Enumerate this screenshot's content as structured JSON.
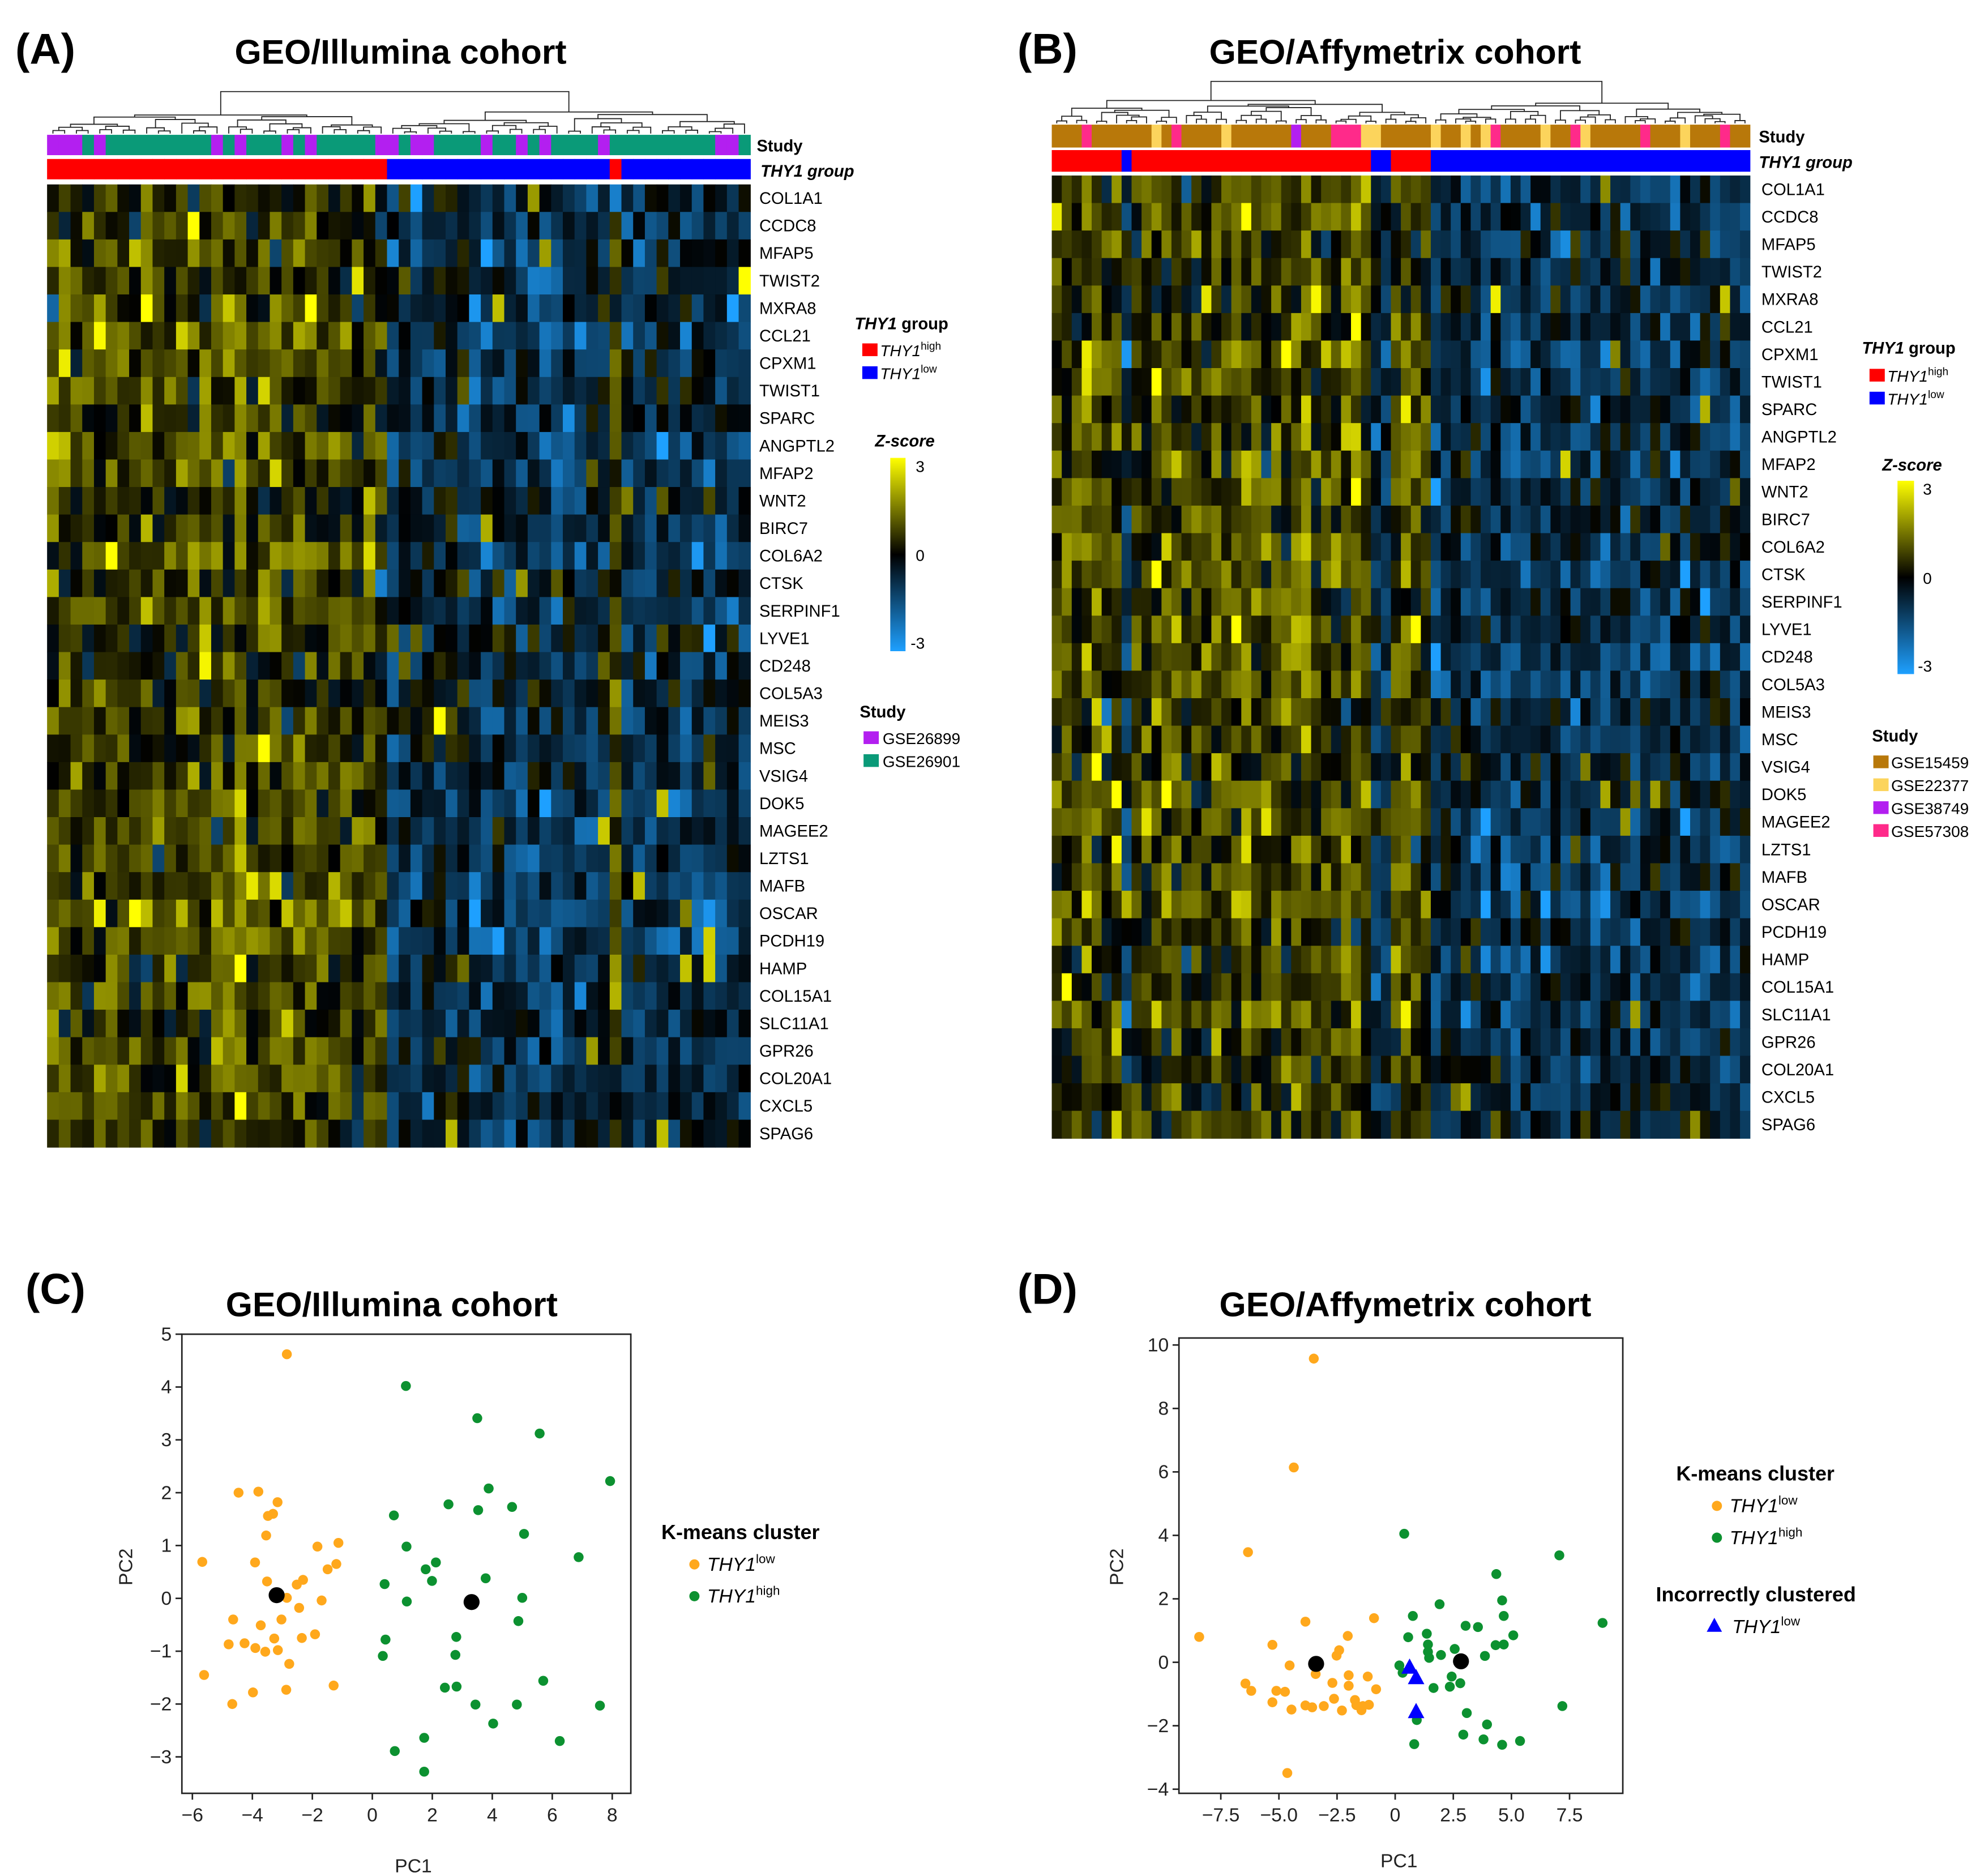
{
  "panels": {
    "A": {
      "label": "(A)",
      "title": "GEO/Illumina cohort"
    },
    "B": {
      "label": "(B)",
      "title": "GEO/Affymetrix cohort"
    },
    "C": {
      "label": "(C)",
      "title": "GEO/Illumina cohort"
    },
    "D": {
      "label": "(D)",
      "title": "GEO/Affymetrix cohort"
    }
  },
  "heatmap_legend": {
    "study_row_label": "Study",
    "thy1_row_label": "THY1 group",
    "thy1_title_italic": "THY1",
    "thy1_title_rest": " group",
    "thy1_items": [
      {
        "name": "THY1",
        "sup": "high",
        "color": "#ff0000"
      },
      {
        "name": "THY1",
        "sup": "low",
        "color": "#0000ff"
      }
    ],
    "zscore_title": "Z-score",
    "zscore_ticks": [
      "3",
      "0",
      "-3"
    ],
    "colors": {
      "high": "#ffff00",
      "zero": "#000000",
      "low": "#1ea0ff"
    },
    "study_title": "Study"
  },
  "chart_data": [
    {
      "type": "heatmap",
      "panel": "A",
      "title": "GEO/Illumina cohort",
      "zlim": [
        -3,
        3
      ],
      "genes": [
        "COL1A1",
        "CCDC8",
        "MFAP5",
        "TWIST2",
        "MXRA8",
        "CCL21",
        "CPXM1",
        "TWIST1",
        "SPARC",
        "ANGPTL2",
        "MFAP2",
        "WNT2",
        "BIRC7",
        "COL6A2",
        "CTSK",
        "SERPINF1",
        "LYVE1",
        "CD248",
        "COL5A3",
        "MEIS3",
        "MSC",
        "VSIG4",
        "DOK5",
        "MAGEE2",
        "LZTS1",
        "MAFB",
        "OSCAR",
        "PCDH19",
        "HAMP",
        "COL15A1",
        "SLC11A1",
        "GPR26",
        "COL20A1",
        "CXCL5",
        "SPAG6"
      ],
      "studies": [
        {
          "name": "GSE26899",
          "color": "#b31ff0"
        },
        {
          "name": "GSE26901",
          "color": "#0a9a78"
        }
      ],
      "study": [
        0,
        0,
        0,
        1,
        0,
        1,
        1,
        1,
        1,
        1,
        1,
        1,
        1,
        1,
        0,
        1,
        0,
        1,
        1,
        1,
        0,
        1,
        0,
        1,
        1,
        1,
        1,
        1,
        0,
        0,
        1,
        0,
        0,
        1,
        1,
        1,
        1,
        0,
        1,
        1,
        0,
        1,
        0,
        1,
        1,
        1,
        1,
        0,
        1,
        1,
        1,
        1,
        1,
        1,
        1,
        1,
        1,
        0,
        0,
        1
      ],
      "thy1_group": [
        0,
        0,
        0,
        0,
        0,
        0,
        0,
        0,
        0,
        0,
        0,
        0,
        0,
        0,
        0,
        0,
        0,
        0,
        0,
        0,
        0,
        0,
        0,
        0,
        0,
        0,
        0,
        0,
        0,
        1,
        1,
        1,
        1,
        1,
        1,
        1,
        1,
        1,
        1,
        1,
        1,
        1,
        1,
        1,
        1,
        1,
        1,
        1,
        0,
        1,
        1,
        1,
        1,
        1,
        1,
        1,
        1,
        1,
        1,
        1
      ],
      "top_cluster_sizes": [
        29,
        31
      ]
    },
    {
      "type": "heatmap",
      "panel": "B",
      "title": "GEO/Affymetrix cohort",
      "zlim": [
        -3,
        3
      ],
      "genes": [
        "COL1A1",
        "CCDC8",
        "MFAP5",
        "TWIST2",
        "MXRA8",
        "CCL21",
        "CPXM1",
        "TWIST1",
        "SPARC",
        "ANGPTL2",
        "MFAP2",
        "WNT2",
        "BIRC7",
        "COL6A2",
        "CTSK",
        "SERPINF1",
        "LYVE1",
        "CD248",
        "COL5A3",
        "MEIS3",
        "MSC",
        "VSIG4",
        "DOK5",
        "MAGEE2",
        "LZTS1",
        "MAFB",
        "OSCAR",
        "PCDH19",
        "HAMP",
        "COL15A1",
        "SLC11A1",
        "GPR26",
        "COL20A1",
        "CXCL5",
        "SPAG6"
      ],
      "studies": [
        {
          "name": "GSE15459",
          "color": "#b8780a"
        },
        {
          "name": "GSE22377",
          "color": "#fcd45c"
        },
        {
          "name": "GSE38749",
          "color": "#b31ff0"
        },
        {
          "name": "GSE57308",
          "color": "#ff2a8a"
        }
      ],
      "study": [
        0,
        0,
        0,
        3,
        0,
        0,
        0,
        0,
        0,
        0,
        1,
        0,
        3,
        0,
        0,
        0,
        0,
        1,
        0,
        0,
        0,
        0,
        0,
        0,
        2,
        0,
        0,
        0,
        3,
        3,
        3,
        1,
        1,
        0,
        0,
        0,
        0,
        0,
        1,
        0,
        0,
        1,
        0,
        1,
        3,
        0,
        0,
        0,
        0,
        1,
        0,
        0,
        3,
        1,
        0,
        0,
        0,
        0,
        0,
        3,
        0,
        0,
        0,
        1,
        0,
        0,
        0,
        3,
        0,
        0
      ],
      "thy1_group": [
        0,
        0,
        0,
        0,
        0,
        0,
        0,
        1,
        0,
        0,
        0,
        0,
        0,
        0,
        0,
        0,
        0,
        0,
        0,
        0,
        0,
        0,
        0,
        0,
        0,
        0,
        0,
        0,
        0,
        0,
        0,
        0,
        1,
        1,
        0,
        0,
        0,
        0,
        1,
        1,
        1,
        1,
        1,
        1,
        1,
        1,
        1,
        1,
        1,
        1,
        1,
        1,
        1,
        1,
        1,
        1,
        1,
        1,
        1,
        1,
        1,
        1,
        1,
        1,
        1,
        1,
        1,
        1,
        1,
        1
      ],
      "top_cluster_sizes": [
        38,
        32
      ]
    },
    {
      "type": "scatter",
      "panel": "C",
      "title": "GEO/Illumina cohort",
      "xlabel": "PC1",
      "ylabel": "PC2",
      "xlim": [
        -6.35,
        8.62
      ],
      "ylim": [
        -3.69,
        5.0
      ],
      "xticks": [
        -6,
        -4,
        -2,
        0,
        2,
        4,
        6,
        8
      ],
      "xtick_labels": [
        "−6",
        "−4",
        "−2",
        "0",
        "2",
        "4",
        "6",
        "8"
      ],
      "yticks": [
        -3,
        -2,
        -1,
        0,
        1,
        2,
        3,
        4,
        5
      ],
      "ytick_labels": [
        "−3",
        "−2",
        "−1",
        "0",
        "1",
        "2",
        "3",
        "4",
        "5"
      ],
      "legend_title": "K-means cluster",
      "series": [
        {
          "name": "THY1",
          "sup": "low",
          "color": "#ffa81c",
          "marker": "circle",
          "points": [
            [
              -2.85,
              4.62
            ],
            [
              -4.46,
              2.0
            ],
            [
              -3.8,
              2.02
            ],
            [
              -3.16,
              1.82
            ],
            [
              -3.48,
              1.56
            ],
            [
              -3.31,
              1.6
            ],
            [
              -3.54,
              1.19
            ],
            [
              -1.83,
              0.98
            ],
            [
              -1.13,
              1.05
            ],
            [
              -5.67,
              0.69
            ],
            [
              -3.91,
              0.68
            ],
            [
              -1.2,
              0.65
            ],
            [
              -1.49,
              0.55
            ],
            [
              -3.51,
              0.32
            ],
            [
              -2.52,
              0.26
            ],
            [
              -2.31,
              0.35
            ],
            [
              -2.85,
              0.01
            ],
            [
              -1.69,
              -0.04
            ],
            [
              -2.44,
              -0.18
            ],
            [
              -4.64,
              -0.4
            ],
            [
              -3.03,
              -0.4
            ],
            [
              -3.72,
              -0.51
            ],
            [
              -3.27,
              -0.76
            ],
            [
              -2.35,
              -0.75
            ],
            [
              -1.91,
              -0.68
            ],
            [
              -4.79,
              -0.87
            ],
            [
              -4.26,
              -0.85
            ],
            [
              -3.9,
              -0.94
            ],
            [
              -3.57,
              -1.01
            ],
            [
              -3.15,
              -0.98
            ],
            [
              -2.77,
              -1.24
            ],
            [
              -5.61,
              -1.45
            ],
            [
              -1.29,
              -1.65
            ],
            [
              -3.98,
              -1.78
            ],
            [
              -2.87,
              -1.73
            ],
            [
              -4.67,
              -2.0
            ]
          ]
        },
        {
          "name": "THY1",
          "sup": "high",
          "color": "#0c9130",
          "marker": "circle",
          "points": [
            [
              1.12,
              4.02
            ],
            [
              3.5,
              3.41
            ],
            [
              5.58,
              3.12
            ],
            [
              7.93,
              2.22
            ],
            [
              3.88,
              2.08
            ],
            [
              2.54,
              1.78
            ],
            [
              3.53,
              1.67
            ],
            [
              4.66,
              1.73
            ],
            [
              0.72,
              1.57
            ],
            [
              5.06,
              1.22
            ],
            [
              1.14,
              0.98
            ],
            [
              6.88,
              0.78
            ],
            [
              1.78,
              0.55
            ],
            [
              2.12,
              0.68
            ],
            [
              1.99,
              0.33
            ],
            [
              3.78,
              0.38
            ],
            [
              0.41,
              0.27
            ],
            [
              1.15,
              -0.06
            ],
            [
              5.0,
              0.01
            ],
            [
              4.87,
              -0.43
            ],
            [
              2.8,
              -0.73
            ],
            [
              0.44,
              -0.78
            ],
            [
              0.35,
              -1.09
            ],
            [
              2.77,
              -1.07
            ],
            [
              2.42,
              -1.69
            ],
            [
              2.81,
              -1.67
            ],
            [
              5.7,
              -1.56
            ],
            [
              3.44,
              -2.01
            ],
            [
              4.82,
              -2.01
            ],
            [
              7.59,
              -2.03
            ],
            [
              4.03,
              -2.37
            ],
            [
              1.73,
              -2.64
            ],
            [
              6.25,
              -2.7
            ],
            [
              0.75,
              -2.89
            ],
            [
              1.73,
              -3.28
            ]
          ]
        }
      ],
      "centroids": {
        "color": "#000000",
        "points": [
          [
            -3.19,
            0.06
          ],
          [
            3.31,
            -0.07
          ]
        ]
      }
    },
    {
      "type": "scatter",
      "panel": "D",
      "title": "GEO/Affymetrix cohort",
      "xlabel": "PC1",
      "ylabel": "PC2",
      "xlim": [
        -9.3,
        9.79
      ],
      "ylim": [
        -4.13,
        10.22
      ],
      "xticks": [
        -7.5,
        -5,
        -2.5,
        0,
        2.5,
        5,
        7.5
      ],
      "xtick_labels": [
        "−7.5",
        "−5.0",
        "−2.5",
        "0",
        "2.5",
        "5.0",
        "7.5"
      ],
      "yticks": [
        -4,
        -2,
        0,
        2,
        4,
        6,
        8,
        10
      ],
      "ytick_labels": [
        "−4",
        "−2",
        "0",
        "2",
        "4",
        "6",
        "8",
        "10"
      ],
      "legend_title": "K-means cluster",
      "legend_title2": "Incorrectly clustered",
      "series": [
        {
          "name": "THY1",
          "sup": "low",
          "color": "#ffa81c",
          "marker": "circle",
          "points": [
            [
              -3.5,
              9.57
            ],
            [
              -4.36,
              6.14
            ],
            [
              -6.33,
              3.47
            ],
            [
              -8.43,
              0.8
            ],
            [
              -3.86,
              1.28
            ],
            [
              -0.91,
              1.39
            ],
            [
              -5.28,
              0.55
            ],
            [
              -2.04,
              0.83
            ],
            [
              -2.41,
              0.38
            ],
            [
              -2.52,
              0.21
            ],
            [
              -4.54,
              -0.1
            ],
            [
              -3.42,
              -0.37
            ],
            [
              -2.0,
              -0.41
            ],
            [
              -1.18,
              -0.45
            ],
            [
              -6.44,
              -0.67
            ],
            [
              -6.19,
              -0.9
            ],
            [
              -5.11,
              -0.9
            ],
            [
              -4.74,
              -0.93
            ],
            [
              -2.7,
              -0.65
            ],
            [
              -2.0,
              -0.74
            ],
            [
              -0.82,
              -0.85
            ],
            [
              -5.28,
              -1.26
            ],
            [
              -2.63,
              -1.15
            ],
            [
              -1.73,
              -1.19
            ],
            [
              -1.67,
              -1.35
            ],
            [
              -3.86,
              -1.36
            ],
            [
              -3.57,
              -1.42
            ],
            [
              -3.07,
              -1.38
            ],
            [
              -1.39,
              -1.38
            ],
            [
              -1.13,
              -1.34
            ],
            [
              -4.46,
              -1.49
            ],
            [
              -2.29,
              -1.52
            ],
            [
              -1.45,
              -1.51
            ],
            [
              -4.64,
              -3.49
            ]
          ]
        },
        {
          "name": "THY1",
          "sup": "high",
          "color": "#0c9130",
          "marker": "circle",
          "points": [
            [
              0.39,
              4.05
            ],
            [
              7.06,
              3.37
            ],
            [
              4.35,
              2.78
            ],
            [
              4.6,
              1.95
            ],
            [
              1.91,
              1.83
            ],
            [
              0.76,
              1.46
            ],
            [
              4.67,
              1.46
            ],
            [
              8.92,
              1.24
            ],
            [
              3.03,
              1.15
            ],
            [
              3.56,
              1.11
            ],
            [
              1.36,
              0.9
            ],
            [
              5.08,
              0.85
            ],
            [
              0.56,
              0.79
            ],
            [
              1.41,
              0.56
            ],
            [
              4.32,
              0.54
            ],
            [
              4.67,
              0.56
            ],
            [
              2.56,
              0.42
            ],
            [
              1.41,
              0.33
            ],
            [
              1.46,
              0.14
            ],
            [
              1.97,
              0.23
            ],
            [
              3.86,
              0.2
            ],
            [
              0.18,
              -0.1
            ],
            [
              0.32,
              -0.33
            ],
            [
              2.43,
              -0.45
            ],
            [
              2.8,
              -0.66
            ],
            [
              2.35,
              -0.77
            ],
            [
              1.65,
              -0.81
            ],
            [
              3.08,
              -1.6
            ],
            [
              7.19,
              -1.38
            ],
            [
              3.95,
              -1.96
            ],
            [
              0.93,
              -1.82
            ],
            [
              2.93,
              -2.28
            ],
            [
              3.8,
              -2.43
            ],
            [
              5.37,
              -2.48
            ],
            [
              0.82,
              -2.58
            ],
            [
              4.6,
              -2.6
            ]
          ]
        },
        {
          "name": "THY1",
          "sup": "low",
          "color": "#0000ff",
          "marker": "triangle",
          "legend_group": 2,
          "points": [
            [
              0.62,
              -0.16
            ],
            [
              0.9,
              -0.49
            ],
            [
              0.9,
              -1.56
            ]
          ]
        }
      ],
      "centroids": {
        "color": "#000000",
        "points": [
          [
            -3.4,
            -0.05
          ],
          [
            2.83,
            0.03
          ]
        ]
      }
    }
  ]
}
